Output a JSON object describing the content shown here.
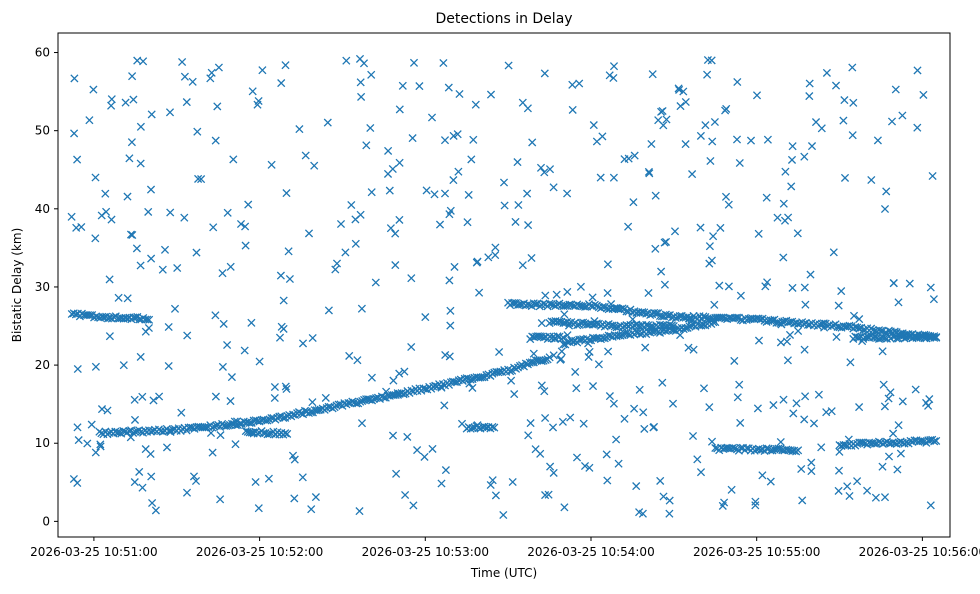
{
  "chart_data": {
    "type": "scatter",
    "title": "Detections in Delay",
    "xlabel": "Time (UTC)",
    "ylabel": "Bistatic Delay (km)",
    "marker": "x",
    "color": "#1f77b4",
    "grid": false,
    "legend": "none",
    "xlim": [
      "2026-03-25 10:50:47",
      "2026-03-25 10:56:10"
    ],
    "ylim": [
      -2.0,
      62.5
    ],
    "xticks": [
      "2026-03-25 10:51:00",
      "2026-03-25 10:52:00",
      "2026-03-25 10:53:00",
      "2026-03-25 10:54:00",
      "2026-03-25 10:55:00",
      "2026-03-25 10:56:00"
    ],
    "yticks": [
      0,
      10,
      20,
      30,
      40,
      50,
      60
    ],
    "tracks": [
      {
        "x": [
          "2026-03-25 10:50:52",
          "2026-03-25 10:51:03",
          "2026-03-25 10:51:15",
          "2026-03-25 10:51:20"
        ],
        "y": [
          26.5,
          26.2,
          26.0,
          25.8
        ]
      },
      {
        "x": [
          "2026-03-25 10:51:02",
          "2026-03-25 10:51:30",
          "2026-03-25 10:52:00",
          "2026-03-25 10:52:30",
          "2026-03-25 10:53:00",
          "2026-03-25 10:53:30",
          "2026-03-25 10:53:45"
        ],
        "y": [
          11.3,
          11.7,
          12.8,
          14.9,
          17.0,
          19.3,
          21.0
        ]
      },
      {
        "x": [
          "2026-03-25 10:53:30",
          "2026-03-25 10:54:00",
          "2026-03-25 10:54:30",
          "2026-03-25 10:55:00",
          "2026-03-25 10:55:30",
          "2026-03-25 10:56:05"
        ],
        "y": [
          27.8,
          27.6,
          26.2,
          25.8,
          25.0,
          23.5
        ]
      },
      {
        "x": [
          "2026-03-25 10:53:50",
          "2026-03-25 10:54:10",
          "2026-03-25 10:54:30",
          "2026-03-25 10:54:45"
        ],
        "y": [
          22.8,
          23.8,
          24.5,
          25.5
        ]
      },
      {
        "x": [
          "2026-03-25 10:53:45",
          "2026-03-25 10:54:10",
          "2026-03-25 10:54:30"
        ],
        "y": [
          25.5,
          25.0,
          25.0
        ]
      },
      {
        "x": [
          "2026-03-25 10:53:38",
          "2026-03-25 10:53:50"
        ],
        "y": [
          23.5,
          23.5
        ]
      },
      {
        "x": [
          "2026-03-25 10:51:55",
          "2026-03-25 10:52:10"
        ],
        "y": [
          11.5,
          11.2
        ]
      },
      {
        "x": [
          "2026-03-25 10:53:15",
          "2026-03-25 10:53:25"
        ],
        "y": [
          12.0,
          12.0
        ]
      },
      {
        "x": [
          "2026-03-25 10:54:45",
          "2026-03-25 10:55:15"
        ],
        "y": [
          9.3,
          9.1
        ]
      },
      {
        "x": [
          "2026-03-25 10:55:30",
          "2026-03-25 10:56:05"
        ],
        "y": [
          9.8,
          10.3
        ]
      },
      {
        "x": [
          "2026-03-25 10:55:35",
          "2026-03-25 10:56:05"
        ],
        "y": [
          23.5,
          23.6
        ]
      }
    ],
    "noise": {
      "count": 560,
      "x_range": [
        "2026-03-25 10:50:51",
        "2026-03-25 10:56:05"
      ],
      "y_range": [
        0.5,
        59.5
      ]
    }
  }
}
